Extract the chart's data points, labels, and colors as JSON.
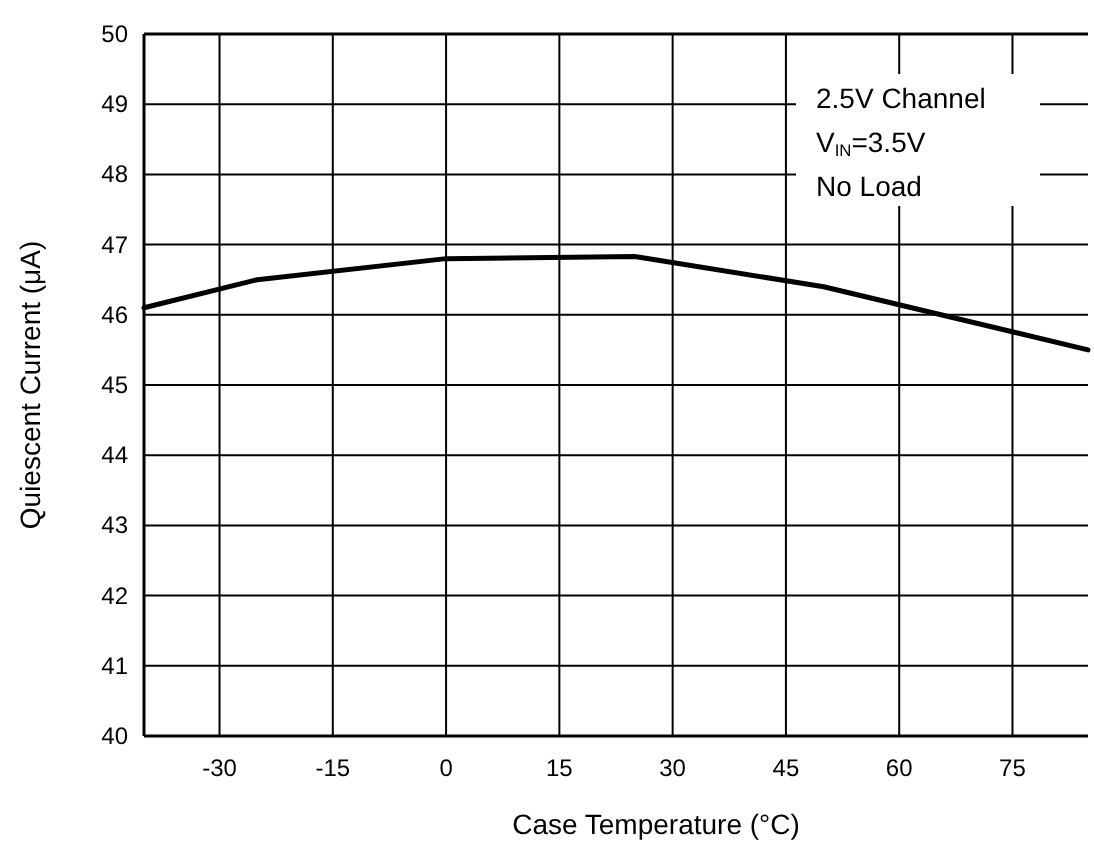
{
  "chart_data": {
    "type": "line",
    "xlabel": "Case Temperature (°C)",
    "ylabel": "Quiescent Current (μA)",
    "x": [
      -40,
      -25,
      0,
      25,
      50,
      85
    ],
    "series": [
      {
        "color": "#000000",
        "values": [
          46.1,
          46.5,
          46.8,
          46.83,
          46.4,
          45.5
        ]
      }
    ],
    "xlim": [
      -40,
      85
    ],
    "xticks": [
      -30,
      -15,
      0,
      15,
      30,
      45,
      60,
      75
    ],
    "ylim": [
      40,
      50
    ],
    "yticks": [
      40,
      41,
      42,
      43,
      44,
      45,
      46,
      47,
      48,
      49,
      50
    ],
    "grid": true,
    "marker": "none",
    "line_style": "solid",
    "annotations": [
      "2.5V Channel",
      "V$_{IN}$=3.5V",
      "No Load"
    ]
  }
}
